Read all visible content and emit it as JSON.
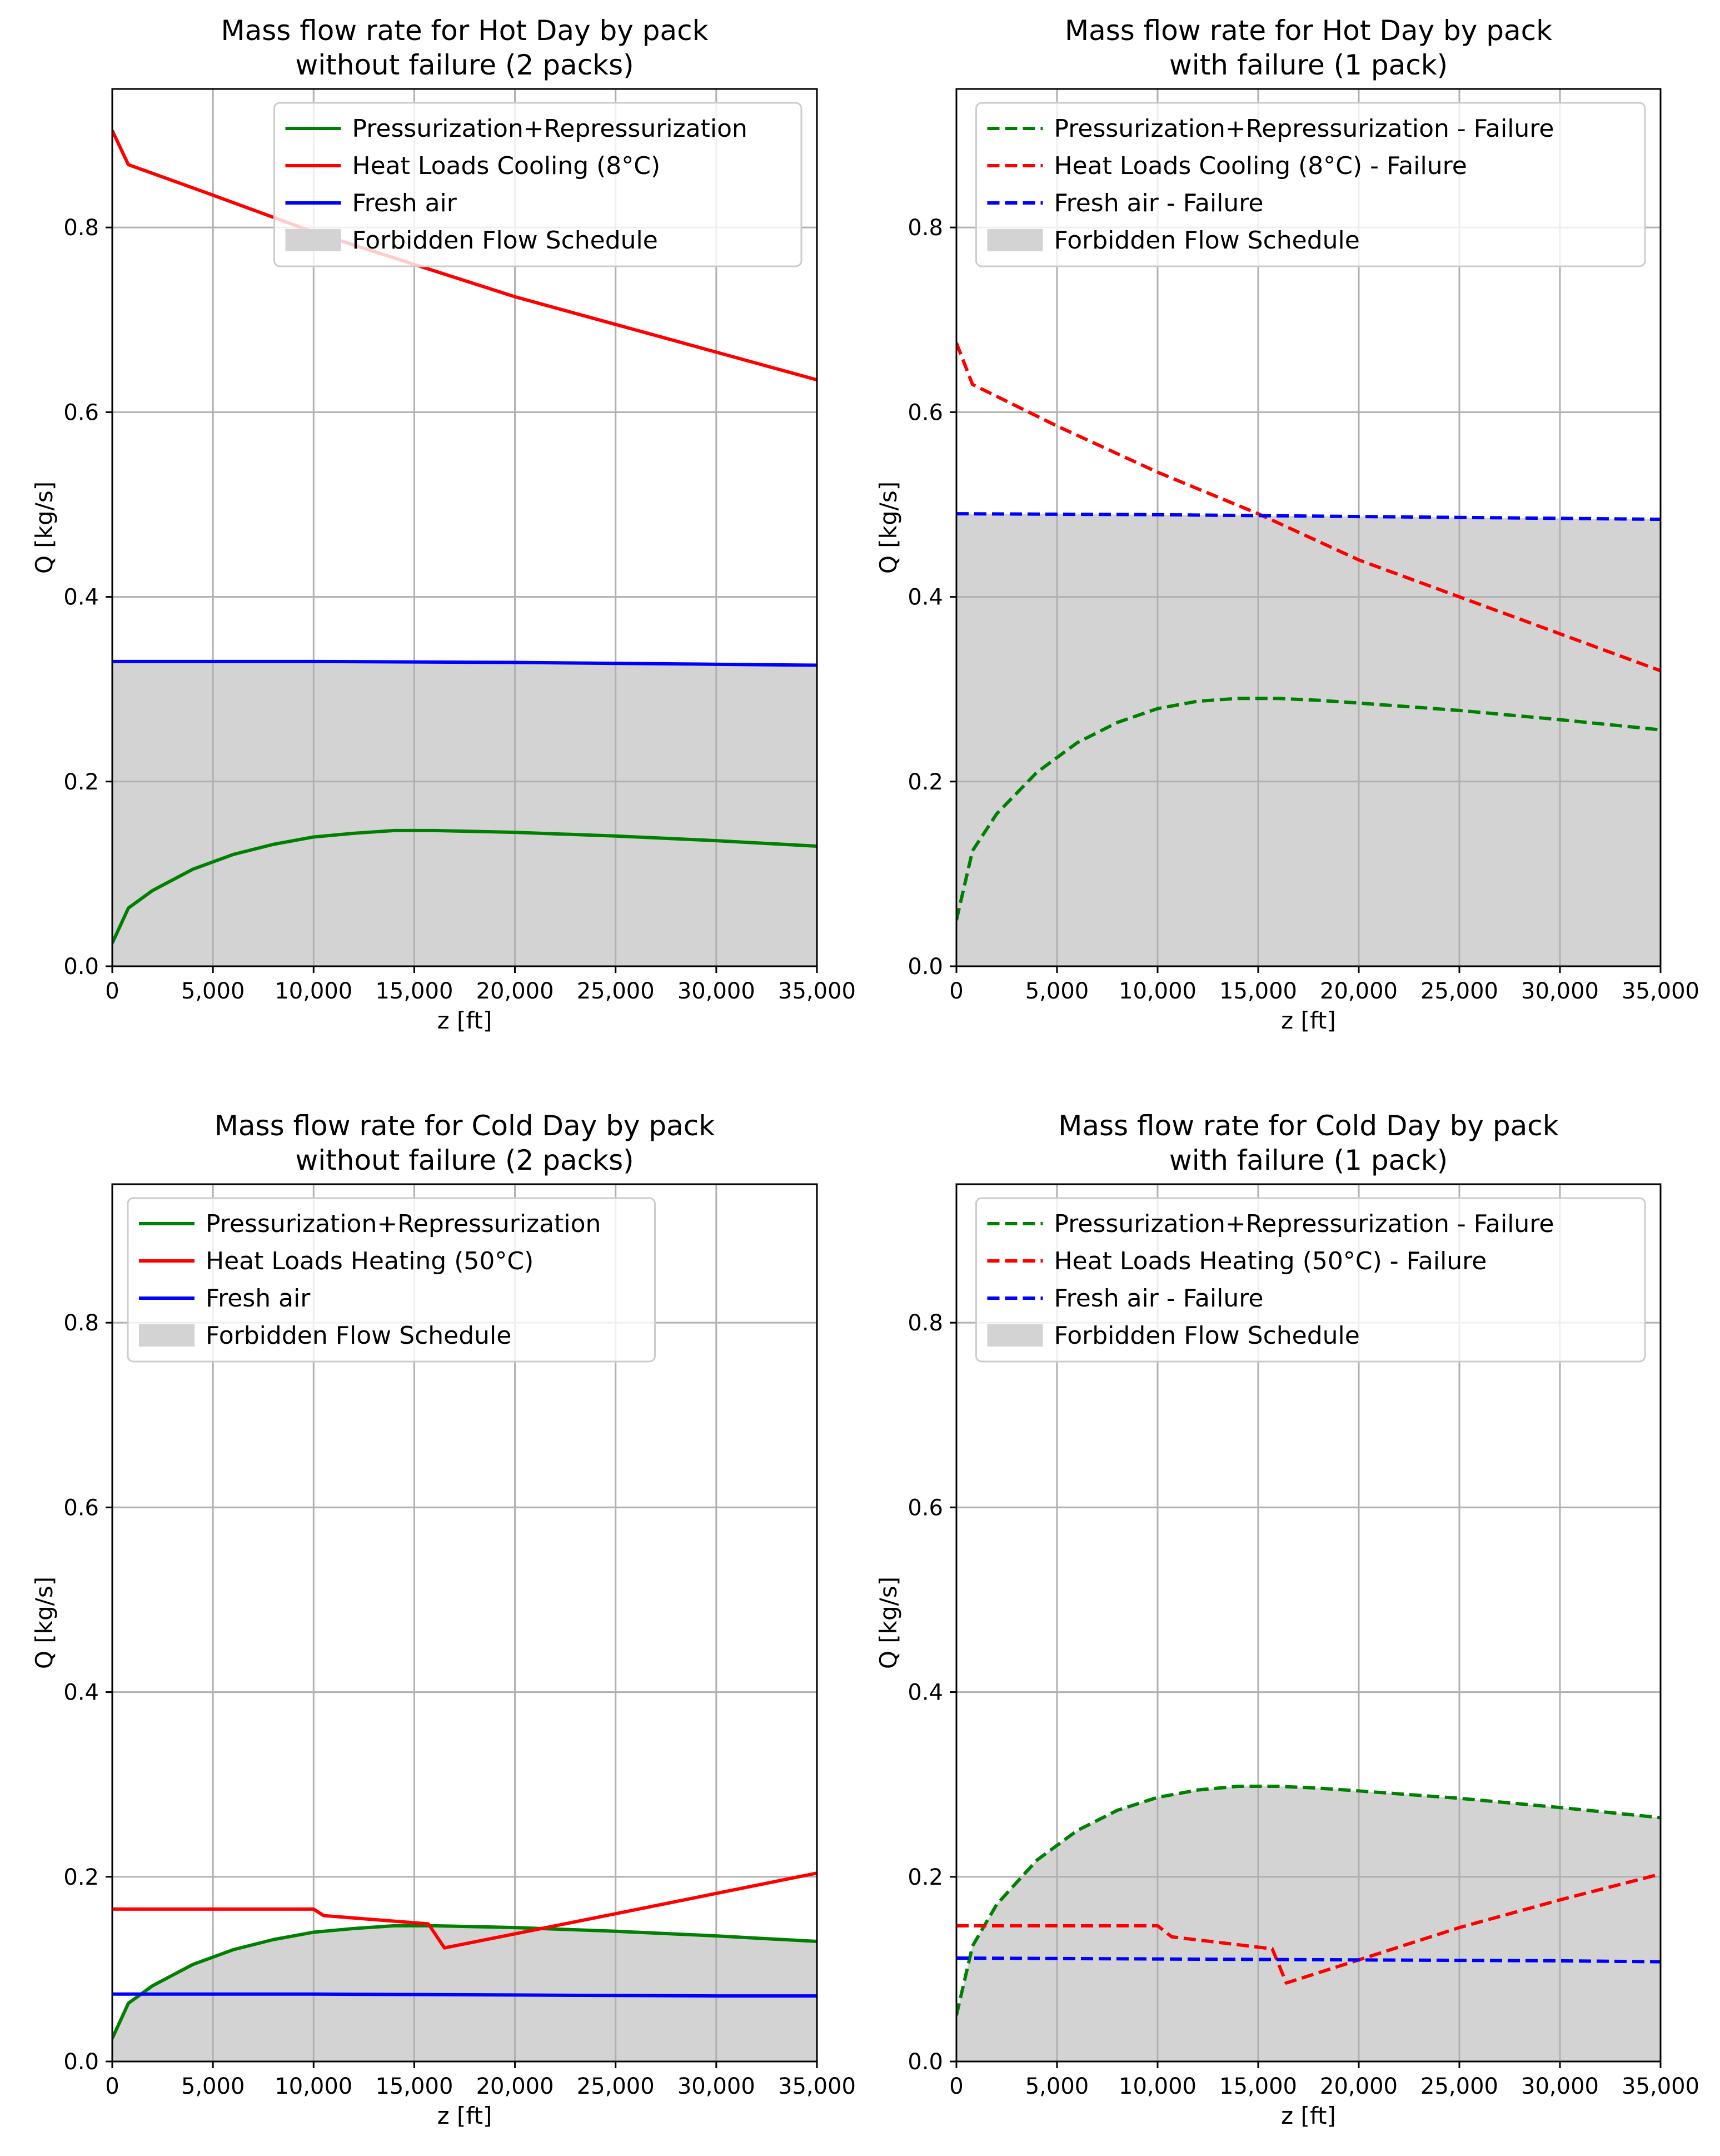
{
  "colors": {
    "green": "#008000",
    "red": "#ff0000",
    "blue": "#0000ff",
    "forbidden": "#d3d3d3",
    "grid": "#b0b0b0",
    "axes": "#000000"
  },
  "chart_data": [
    {
      "type": "line",
      "title": [
        "Mass flow rate for Hot Day by pack",
        "without failure (2 packs)"
      ],
      "xlabel": "z [ft]",
      "ylabel": "Q [kg/s]",
      "xlim": [
        0,
        35000
      ],
      "ylim": [
        0,
        0.95
      ],
      "xticks": [
        0,
        5000,
        10000,
        15000,
        20000,
        25000,
        30000,
        35000
      ],
      "xtick_labels": [
        "0",
        "5,000",
        "10,000",
        "15,000",
        "20,000",
        "25,000",
        "30,000",
        "35,000"
      ],
      "yticks": [
        0.0,
        0.2,
        0.4,
        0.6,
        0.8
      ],
      "ytick_labels": [
        "0.0",
        "0.2",
        "0.4",
        "0.6",
        "0.8"
      ],
      "grid": true,
      "legend_position": "top-right",
      "series": [
        {
          "name": "Pressurization+Repressurization",
          "color": "green",
          "dashed": false,
          "x": [
            0,
            800,
            2000,
            4000,
            6000,
            8000,
            10000,
            12000,
            14000,
            16000,
            18000,
            20000,
            25000,
            30000,
            35000
          ],
          "y": [
            0.025,
            0.063,
            0.082,
            0.105,
            0.121,
            0.132,
            0.14,
            0.144,
            0.147,
            0.147,
            0.146,
            0.145,
            0.141,
            0.136,
            0.13
          ]
        },
        {
          "name": "Heat Loads Cooling (8°C)",
          "color": "red",
          "dashed": false,
          "x": [
            0,
            800,
            5000,
            10000,
            15000,
            20000,
            25000,
            30000,
            35000
          ],
          "y": [
            0.905,
            0.868,
            0.835,
            0.795,
            0.76,
            0.725,
            0.695,
            0.665,
            0.635
          ]
        },
        {
          "name": "Fresh air",
          "color": "blue",
          "dashed": false,
          "x": [
            0,
            10000,
            20000,
            30000,
            35000
          ],
          "y": [
            0.33,
            0.33,
            0.329,
            0.327,
            0.326
          ]
        }
      ],
      "forbidden": {
        "name": "Forbidden Flow Schedule",
        "follows_series": "Fresh air"
      }
    },
    {
      "type": "line",
      "title": [
        "Mass flow rate for Hot Day by pack",
        "with failure (1 pack)"
      ],
      "xlabel": "z [ft]",
      "ylabel": "Q [kg/s]",
      "xlim": [
        0,
        35000
      ],
      "ylim": [
        0,
        0.95
      ],
      "xticks": [
        0,
        5000,
        10000,
        15000,
        20000,
        25000,
        30000,
        35000
      ],
      "xtick_labels": [
        "0",
        "5,000",
        "10,000",
        "15,000",
        "20,000",
        "25,000",
        "30,000",
        "35,000"
      ],
      "yticks": [
        0.0,
        0.2,
        0.4,
        0.6,
        0.8
      ],
      "ytick_labels": [
        "0.0",
        "0.2",
        "0.4",
        "0.6",
        "0.8"
      ],
      "grid": true,
      "legend_position": "top-right",
      "series": [
        {
          "name": "Pressurization+Repressurization - Failure",
          "color": "green",
          "dashed": true,
          "x": [
            0,
            800,
            2000,
            4000,
            6000,
            8000,
            10000,
            12000,
            14000,
            16000,
            18000,
            20000,
            25000,
            30000,
            35000
          ],
          "y": [
            0.05,
            0.125,
            0.165,
            0.21,
            0.242,
            0.264,
            0.279,
            0.287,
            0.29,
            0.29,
            0.288,
            0.285,
            0.277,
            0.267,
            0.256
          ]
        },
        {
          "name": "Heat Loads Cooling (8°C) - Failure",
          "color": "red",
          "dashed": true,
          "x": [
            0,
            800,
            5000,
            10000,
            15000,
            20000,
            25000,
            30000,
            35000
          ],
          "y": [
            0.675,
            0.63,
            0.585,
            0.535,
            0.49,
            0.44,
            0.4,
            0.36,
            0.32
          ]
        },
        {
          "name": "Fresh air - Failure",
          "color": "blue",
          "dashed": true,
          "x": [
            0,
            10000,
            20000,
            30000,
            35000
          ],
          "y": [
            0.49,
            0.489,
            0.487,
            0.485,
            0.484
          ]
        }
      ],
      "forbidden": {
        "name": "Forbidden Flow Schedule",
        "follows_series": "Fresh air - Failure"
      }
    },
    {
      "type": "line",
      "title": [
        "Mass flow rate for Cold Day by pack",
        "without failure (2 packs)"
      ],
      "xlabel": "z [ft]",
      "ylabel": "Q [kg/s]",
      "xlim": [
        0,
        35000
      ],
      "ylim": [
        0,
        0.95
      ],
      "xticks": [
        0,
        5000,
        10000,
        15000,
        20000,
        25000,
        30000,
        35000
      ],
      "xtick_labels": [
        "0",
        "5,000",
        "10,000",
        "15,000",
        "20,000",
        "25,000",
        "30,000",
        "35,000"
      ],
      "yticks": [
        0.0,
        0.2,
        0.4,
        0.6,
        0.8
      ],
      "ytick_labels": [
        "0.0",
        "0.2",
        "0.4",
        "0.6",
        "0.8"
      ],
      "grid": true,
      "legend_position": "top-left",
      "series": [
        {
          "name": "Pressurization+Repressurization",
          "color": "green",
          "dashed": false,
          "x": [
            0,
            800,
            2000,
            4000,
            6000,
            8000,
            10000,
            12000,
            14000,
            16000,
            18000,
            20000,
            25000,
            30000,
            35000
          ],
          "y": [
            0.025,
            0.063,
            0.082,
            0.105,
            0.121,
            0.132,
            0.14,
            0.144,
            0.147,
            0.147,
            0.146,
            0.145,
            0.141,
            0.136,
            0.13
          ]
        },
        {
          "name": "Heat Loads Heating (50°C)",
          "color": "red",
          "dashed": false,
          "x": [
            0,
            10000,
            10500,
            15700,
            16500,
            25000,
            35000
          ],
          "y": [
            0.165,
            0.165,
            0.158,
            0.149,
            0.123,
            0.16,
            0.204
          ]
        },
        {
          "name": "Fresh air",
          "color": "blue",
          "dashed": false,
          "x": [
            0,
            10000,
            20000,
            30000,
            35000
          ],
          "y": [
            0.073,
            0.073,
            0.072,
            0.071,
            0.071
          ]
        }
      ],
      "forbidden": {
        "name": "Forbidden Flow Schedule",
        "follows_series": "Pressurization+Repressurization"
      }
    },
    {
      "type": "line",
      "title": [
        "Mass flow rate for Cold Day by pack",
        "with failure (1 pack)"
      ],
      "xlabel": "z [ft]",
      "ylabel": "Q [kg/s]",
      "xlim": [
        0,
        35000
      ],
      "ylim": [
        0,
        0.95
      ],
      "xticks": [
        0,
        5000,
        10000,
        15000,
        20000,
        25000,
        30000,
        35000
      ],
      "xtick_labels": [
        "0",
        "5,000",
        "10,000",
        "15,000",
        "20,000",
        "25,000",
        "30,000",
        "35,000"
      ],
      "yticks": [
        0.0,
        0.2,
        0.4,
        0.6,
        0.8
      ],
      "ytick_labels": [
        "0.0",
        "0.2",
        "0.4",
        "0.6",
        "0.8"
      ],
      "grid": true,
      "legend_position": "top-right",
      "series": [
        {
          "name": "Pressurization+Repressurization - Failure",
          "color": "green",
          "dashed": true,
          "x": [
            0,
            800,
            2000,
            4000,
            6000,
            8000,
            10000,
            12000,
            14000,
            16000,
            18000,
            20000,
            25000,
            30000,
            35000
          ],
          "y": [
            0.05,
            0.125,
            0.17,
            0.218,
            0.25,
            0.272,
            0.286,
            0.294,
            0.298,
            0.298,
            0.296,
            0.293,
            0.285,
            0.275,
            0.264
          ]
        },
        {
          "name": "Heat Loads Heating (50°C) - Failure",
          "color": "red",
          "dashed": true,
          "x": [
            0,
            10000,
            10700,
            15700,
            16400,
            20000,
            25000,
            30000,
            35000
          ],
          "y": [
            0.147,
            0.147,
            0.135,
            0.122,
            0.085,
            0.11,
            0.145,
            0.175,
            0.203
          ]
        },
        {
          "name": "Fresh air - Failure",
          "color": "blue",
          "dashed": true,
          "x": [
            0,
            10000,
            20000,
            30000,
            35000
          ],
          "y": [
            0.112,
            0.111,
            0.11,
            0.109,
            0.108
          ]
        }
      ],
      "forbidden": {
        "name": "Forbidden Flow Schedule",
        "follows_series": "Pressurization+Repressurization - Failure"
      }
    }
  ]
}
